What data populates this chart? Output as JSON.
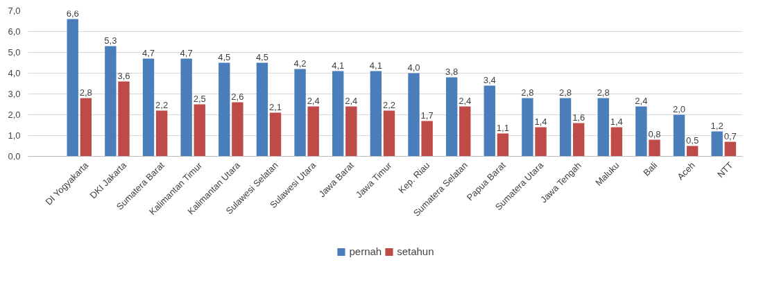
{
  "chart_data": {
    "type": "bar",
    "categories": [
      "DI Yogyakarta",
      "DKI Jakarta",
      "Sumatera Barat",
      "Kalimantan Timur",
      "Kalimantan Utara",
      "Sulawesi Selatan",
      "Sulawesi Utara",
      "Jawa Barat",
      "Jawa Timur",
      "Kep. Riau",
      "Sumatera Selatan",
      "Papua Barat",
      "Sumatera Utara",
      "Jawa Tengah",
      "Maluku",
      "Bali",
      "Aceh",
      "NTT"
    ],
    "series": [
      {
        "name": "pernah",
        "color": "#4a7ebb",
        "values": [
          6.6,
          5.3,
          4.7,
          4.7,
          4.5,
          4.5,
          4.2,
          4.1,
          4.1,
          4.0,
          3.8,
          3.4,
          2.8,
          2.8,
          2.8,
          2.4,
          2.0,
          1.2
        ],
        "value_labels": [
          "6,6",
          "5,3",
          "4,7",
          "4,7",
          "4,5",
          "4,5",
          "4,2",
          "4,1",
          "4,1",
          "4,0",
          "3,8",
          "3,4",
          "2,8",
          "2,8",
          "2,8",
          "2,4",
          "2,0",
          "1,2"
        ]
      },
      {
        "name": "setahun",
        "color": "#be4b48",
        "values": [
          2.8,
          3.6,
          2.2,
          2.5,
          2.6,
          2.1,
          2.4,
          2.4,
          2.2,
          1.7,
          2.4,
          1.1,
          1.4,
          1.6,
          1.4,
          0.8,
          0.5,
          0.7
        ],
        "value_labels": [
          "2,8",
          "3,6",
          "2,2",
          "2,5",
          "2,6",
          "2,1",
          "2,4",
          "2,4",
          "2,2",
          "1,7",
          "2,4",
          "1,1",
          "1,4",
          "1,6",
          "1,4",
          "0,8",
          "0,5",
          "0,7"
        ]
      }
    ],
    "ylim": [
      0,
      7
    ],
    "yticks": [
      {
        "value": 0,
        "label": "0,0"
      },
      {
        "value": 1,
        "label": "1,0"
      },
      {
        "value": 2,
        "label": "2,0"
      },
      {
        "value": 3,
        "label": "3,0"
      },
      {
        "value": 4,
        "label": "4,0"
      },
      {
        "value": 5,
        "label": "5,0"
      },
      {
        "value": 6,
        "label": "6,0"
      },
      {
        "value": 7,
        "label": "7,0"
      }
    ],
    "grid": "y",
    "legend": "bottom"
  }
}
